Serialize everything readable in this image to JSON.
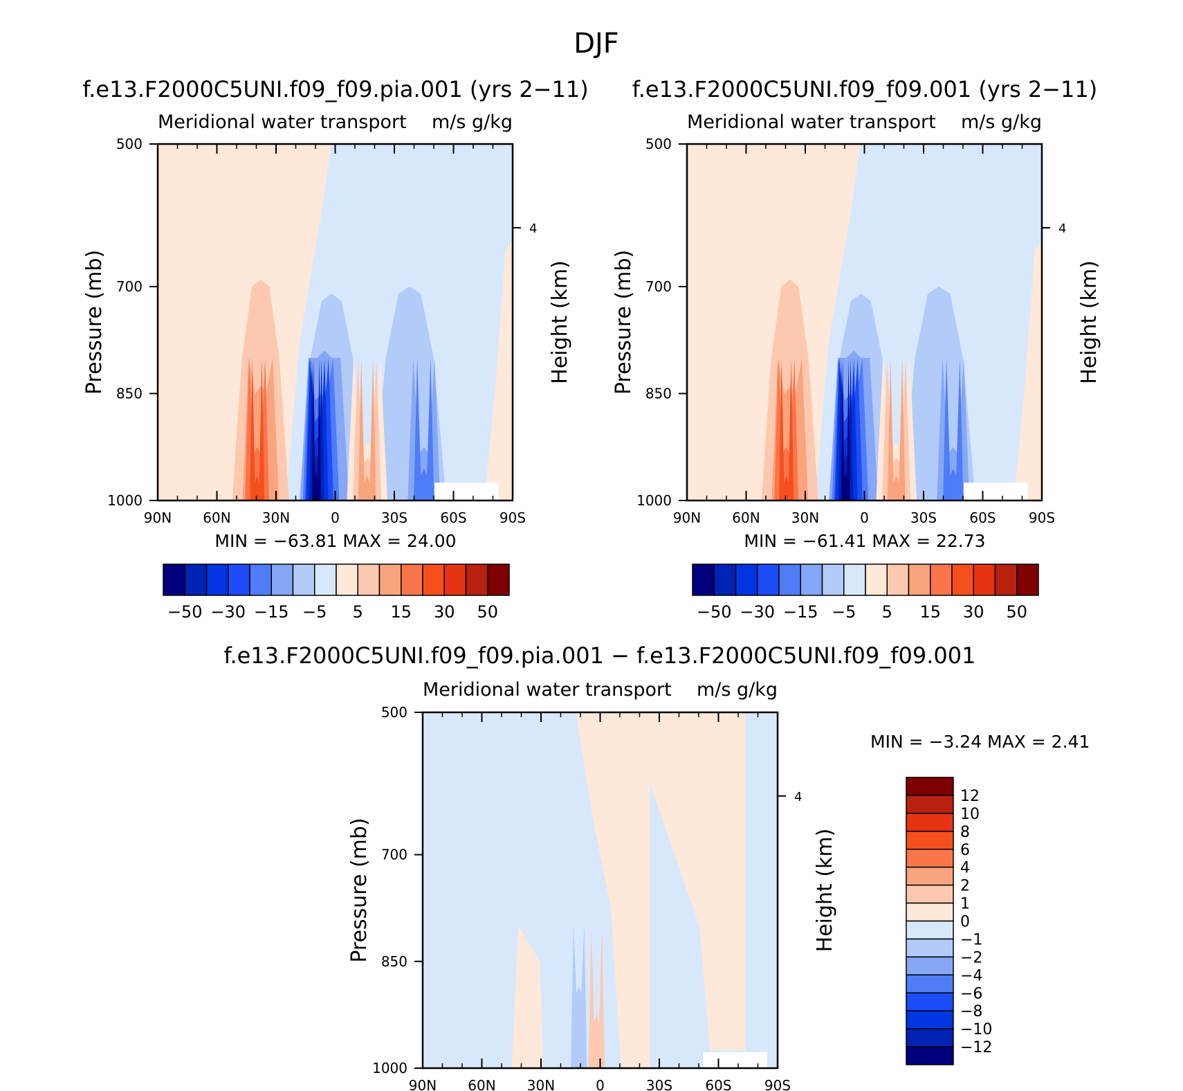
{
  "figure": {
    "title": "DJF"
  },
  "chart_data": [
    {
      "type": "heatmap",
      "title": "f.e13.F2000C5UNI.f09_f09.pia.001 (yrs 2−11)",
      "subtitle_left": "Meridional water transport",
      "subtitle_right": "m/s g/kg",
      "ylabel": "Pressure (mb)",
      "ylabel_right": "Height (km)",
      "yticks": [
        "500",
        "700",
        "850",
        "1000"
      ],
      "ytick_values": [
        500,
        700,
        850,
        1000
      ],
      "ylim": [
        500,
        1000
      ],
      "ticks_right": [
        "4"
      ],
      "ticks_right_values": [
        4
      ],
      "xticks": [
        "90N",
        "60N",
        "30N",
        "0",
        "30S",
        "60S",
        "90S"
      ],
      "xtick_values": [
        90,
        60,
        30,
        0,
        -30,
        -60,
        -90
      ],
      "xlim": [
        90,
        -90
      ],
      "stats": "MIN = −63.81   MAX =   24.00",
      "min": -63.81,
      "max": 24.0,
      "colorbar": {
        "orientation": "horizontal",
        "labels": [
          "−50",
          "−30",
          "−15",
          "−5",
          "5",
          "15",
          "30",
          "50"
        ],
        "levels": [
          -60,
          -50,
          -40,
          -30,
          -20,
          -15,
          -10,
          -5,
          0,
          5,
          10,
          15,
          20,
          30,
          40,
          50,
          60
        ]
      },
      "features": [
        {
          "kind": "negative",
          "lat": -10,
          "peak": -63.81,
          "near_surface": true
        },
        {
          "kind": "positive",
          "lat": 40,
          "peak": 24.0,
          "near_surface": true
        },
        {
          "kind": "positive",
          "lat": -20,
          "near_surface": true
        },
        {
          "kind": "negative",
          "lat": -45,
          "near_surface": true
        }
      ]
    },
    {
      "type": "heatmap",
      "title": "f.e13.F2000C5UNI.f09_f09.001 (yrs 2−11)",
      "subtitle_left": "Meridional water transport",
      "subtitle_right": "m/s g/kg",
      "ylabel": "Pressure (mb)",
      "ylabel_right": "Height (km)",
      "yticks": [
        "500",
        "700",
        "850",
        "1000"
      ],
      "ytick_values": [
        500,
        700,
        850,
        1000
      ],
      "ylim": [
        500,
        1000
      ],
      "ticks_right": [
        "4"
      ],
      "ticks_right_values": [
        4
      ],
      "xticks": [
        "90N",
        "60N",
        "30N",
        "0",
        "30S",
        "60S",
        "90S"
      ],
      "xtick_values": [
        90,
        60,
        30,
        0,
        -30,
        -60,
        -90
      ],
      "xlim": [
        90,
        -90
      ],
      "stats": "MIN = −61.41   MAX =   22.73",
      "min": -61.41,
      "max": 22.73,
      "colorbar": {
        "orientation": "horizontal",
        "labels": [
          "−50",
          "−30",
          "−15",
          "−5",
          "5",
          "15",
          "30",
          "50"
        ],
        "levels": [
          -60,
          -50,
          -40,
          -30,
          -20,
          -15,
          -10,
          -5,
          0,
          5,
          10,
          15,
          20,
          30,
          40,
          50,
          60
        ]
      },
      "features": [
        {
          "kind": "negative",
          "lat": -10,
          "peak": -61.41,
          "near_surface": true
        },
        {
          "kind": "positive",
          "lat": 40,
          "peak": 22.73,
          "near_surface": true
        },
        {
          "kind": "positive",
          "lat": -20,
          "near_surface": true
        },
        {
          "kind": "negative",
          "lat": -45,
          "near_surface": true
        }
      ]
    },
    {
      "type": "heatmap",
      "title": "f.e13.F2000C5UNI.f09_f09.pia.001 − f.e13.F2000C5UNI.f09_f09.001",
      "subtitle_left": "Meridional water transport",
      "subtitle_right": "m/s g/kg",
      "ylabel": "Pressure (mb)",
      "ylabel_right": "Height (km)",
      "yticks": [
        "500",
        "700",
        "850",
        "1000"
      ],
      "ytick_values": [
        500,
        700,
        850,
        1000
      ],
      "ylim": [
        500,
        1000
      ],
      "ticks_right": [
        "4"
      ],
      "ticks_right_values": [
        4
      ],
      "xticks": [
        "90N",
        "60N",
        "30N",
        "0",
        "30S",
        "60S",
        "90S"
      ],
      "xtick_values": [
        90,
        60,
        30,
        0,
        -30,
        -60,
        -90
      ],
      "xlim": [
        90,
        -90
      ],
      "stats": "MIN =    −3.24   MAX =     2.41",
      "min": -3.24,
      "max": 2.41,
      "colorbar": {
        "orientation": "vertical",
        "labels": [
          "12",
          "10",
          "8",
          "6",
          "4",
          "2",
          "1",
          "0",
          "−1",
          "−2",
          "−4",
          "−6",
          "−8",
          "−10",
          "−12"
        ],
        "levels": [
          -14,
          -12,
          -10,
          -8,
          -6,
          -4,
          -2,
          -1,
          0,
          1,
          2,
          4,
          6,
          8,
          10,
          12,
          14
        ]
      },
      "features": [
        {
          "kind": "positive",
          "lat_range": [
            -30,
            0
          ],
          "depth": "full column"
        },
        {
          "kind": "positive",
          "lat_range": [
            30,
            50
          ],
          "near_surface": true
        },
        {
          "kind": "negative",
          "lat": -10,
          "near_surface": true
        }
      ]
    }
  ],
  "colors": {
    "diverging": [
      "#00007f",
      "#0023b3",
      "#0035e1",
      "#1d4cf9",
      "#4f7cf7",
      "#86a6f6",
      "#b3cbf8",
      "#d8e8fc",
      "#fde8d9",
      "#fcc9b0",
      "#faa47f",
      "#f8764a",
      "#f54f1e",
      "#e63312",
      "#b8210e",
      "#7f0000"
    ],
    "background": "#ffffff",
    "axis": "#000000"
  }
}
